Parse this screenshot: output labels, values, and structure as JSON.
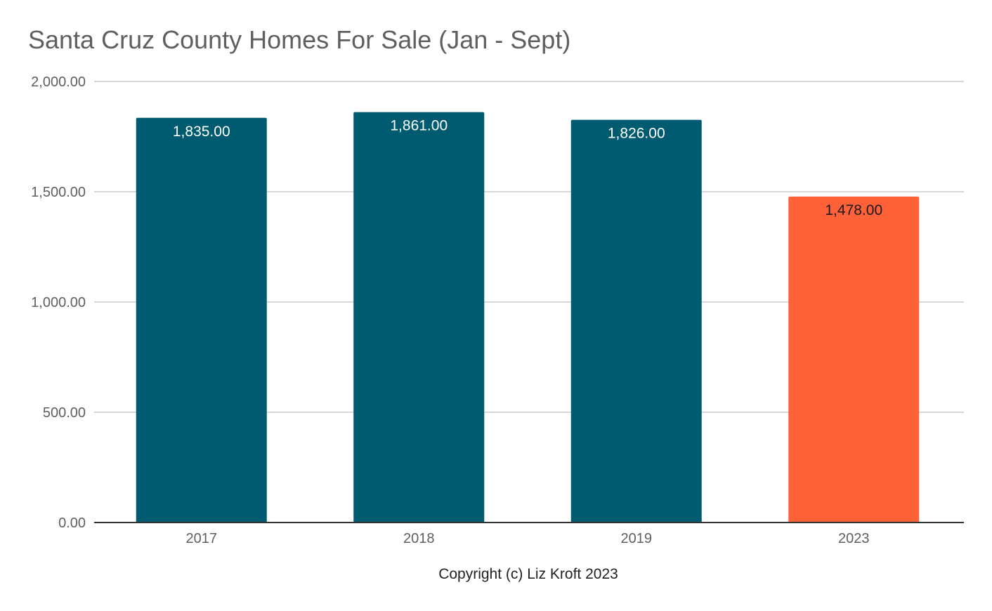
{
  "chart_data": {
    "type": "bar",
    "title": "Santa Cruz County Homes For Sale (Jan - Sept)",
    "xlabel": "Copyright (c) Liz Kroft 2023",
    "ylabel": "",
    "categories": [
      "2017",
      "2018",
      "2019",
      "2023"
    ],
    "values": [
      1835,
      1861,
      1826,
      1478
    ],
    "data_labels": [
      "1,835.00",
      "1,861.00",
      "1,826.00",
      "1,478.00"
    ],
    "bar_colors": [
      "#005a70",
      "#005a70",
      "#005a70",
      "#ff6138"
    ],
    "label_colors": [
      "#ffffff",
      "#ffffff",
      "#ffffff",
      "#1a1a1a"
    ],
    "ylim": [
      0,
      2000
    ],
    "yticks": [
      0,
      500,
      1000,
      1500,
      2000
    ],
    "ytick_labels": [
      "0.00",
      "500.00",
      "1,000.00",
      "1,500.00",
      "2,000.00"
    ],
    "grid": true,
    "legend": "none"
  }
}
